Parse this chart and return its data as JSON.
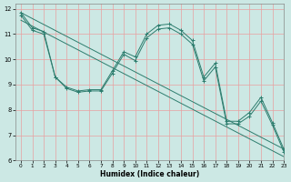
{
  "xlabel": "Humidex (Indice chaleur)",
  "bg_color": "#cce8e4",
  "grid_color": "#e8a0a0",
  "line_color": "#2d7d6e",
  "xlim": [
    -0.5,
    23
  ],
  "ylim": [
    6,
    12.2
  ],
  "xticks": [
    0,
    1,
    2,
    3,
    4,
    5,
    6,
    7,
    8,
    9,
    10,
    11,
    12,
    13,
    14,
    15,
    16,
    17,
    18,
    19,
    20,
    21,
    22,
    23
  ],
  "yticks": [
    6,
    7,
    8,
    9,
    10,
    11,
    12
  ],
  "line1_x": [
    0,
    23
  ],
  "line1_y": [
    11.85,
    6.45
  ],
  "line2_x": [
    0,
    23
  ],
  "line2_y": [
    11.55,
    6.15
  ],
  "line3_x": [
    0,
    1,
    2,
    3,
    4,
    5,
    6,
    7,
    8,
    9,
    10,
    11,
    12,
    13,
    14,
    15,
    16,
    17,
    18,
    19,
    20,
    21,
    22,
    23
  ],
  "line3_y": [
    11.85,
    11.25,
    11.1,
    9.3,
    8.9,
    8.75,
    8.8,
    8.8,
    9.55,
    10.3,
    10.1,
    11.0,
    11.35,
    11.4,
    11.15,
    10.75,
    9.3,
    9.85,
    7.55,
    7.55,
    7.9,
    8.5,
    7.5,
    6.45
  ],
  "line4_x": [
    0,
    1,
    2,
    3,
    4,
    5,
    6,
    7,
    8,
    9,
    10,
    11,
    12,
    13,
    14,
    15,
    16,
    17,
    18,
    19,
    20,
    21,
    22,
    23
  ],
  "line4_y": [
    11.75,
    11.15,
    11.0,
    9.3,
    8.85,
    8.7,
    8.75,
    8.75,
    9.45,
    10.2,
    9.95,
    10.85,
    11.2,
    11.25,
    11.0,
    10.6,
    9.15,
    9.7,
    7.45,
    7.45,
    7.75,
    8.35,
    7.4,
    6.35
  ]
}
